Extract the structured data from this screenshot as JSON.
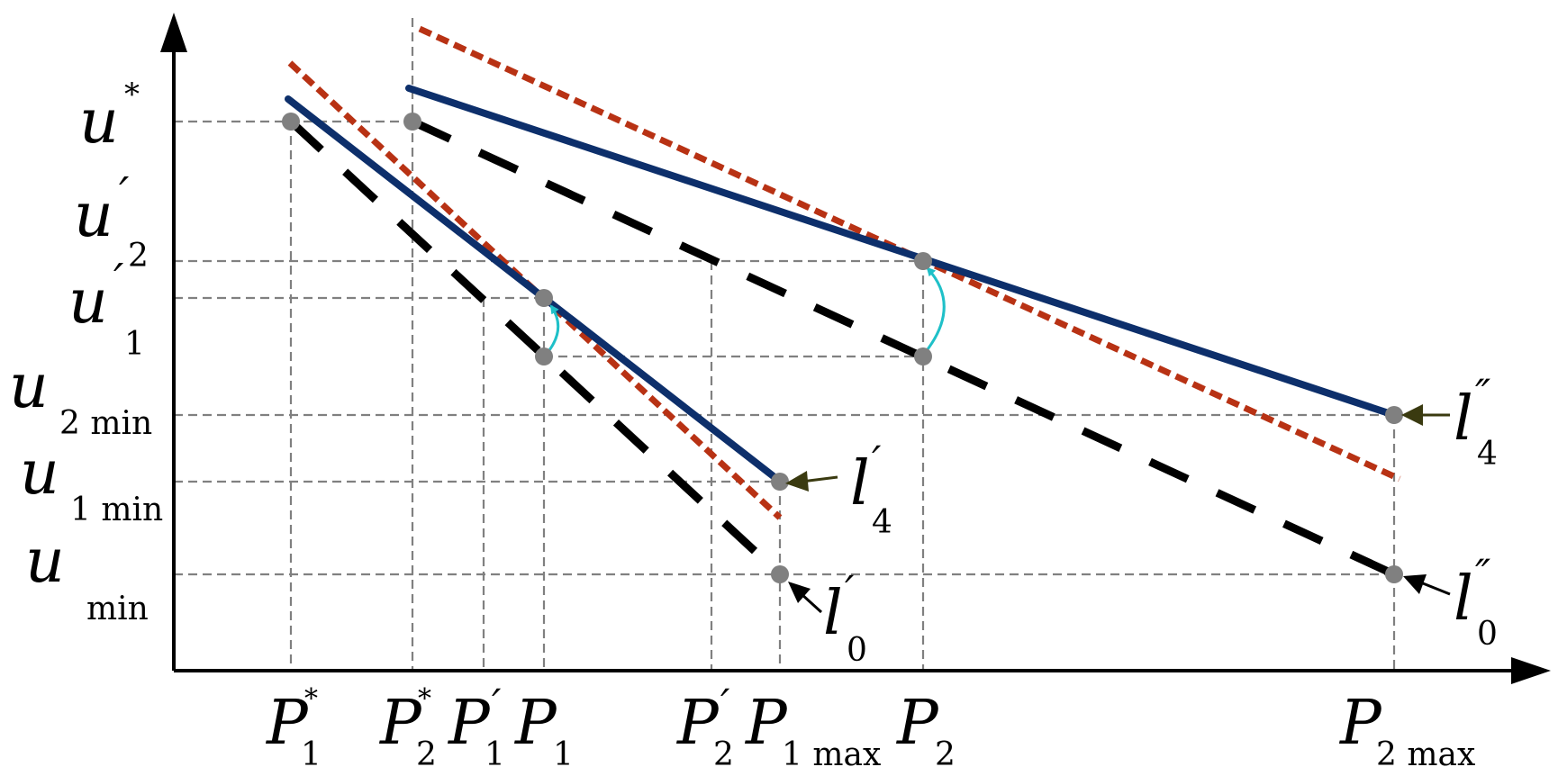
{
  "colors": {
    "blue_line": "#0d2f6b",
    "red_dotted": "#b83214",
    "black_dashed": "#000000",
    "grid": "#808080",
    "point": "#808080",
    "cyan_arrow": "#1fc0c8",
    "label_arrow_olive": "#3a3a10",
    "label_arrow_black": "#000000"
  },
  "y_labels": {
    "u_star": {
      "main": "u",
      "sup": "*",
      "sub": ""
    },
    "u2_prime": {
      "main": "u",
      "sup": "′",
      "sub": "2"
    },
    "u1_prime": {
      "main": "u",
      "sup": "′",
      "sub": "1"
    },
    "u2_min": {
      "main": "u",
      "sup": "",
      "sub": "2 min"
    },
    "u1_min": {
      "main": "u",
      "sup": "",
      "sub": "1 min"
    },
    "u_min": {
      "main": "u",
      "sup": "",
      "sub": "min"
    }
  },
  "x_labels": {
    "p1_star": {
      "main": "P",
      "sup": "*",
      "sub": "1"
    },
    "p2_star": {
      "main": "P",
      "sup": "*",
      "sub": "2"
    },
    "p1_prime": {
      "main": "P",
      "sup": "′",
      "sub": "1"
    },
    "p1": {
      "main": "P",
      "sup": "",
      "sub": "1"
    },
    "p2_prime": {
      "main": "P",
      "sup": "′",
      "sub": "2"
    },
    "p1_max": {
      "main": "P",
      "sup": "",
      "sub": "1 max"
    },
    "p2": {
      "main": "P",
      "sup": "",
      "sub": "2"
    },
    "p2_max": {
      "main": "P",
      "sup": "",
      "sub": "2 max"
    }
  },
  "line_labels": {
    "l4_prime": {
      "main": "l",
      "sup": "′",
      "sub": "4"
    },
    "l0_prime": {
      "main": "l",
      "sup": "′",
      "sub": "0"
    },
    "l4_dprime": {
      "main": "l",
      "sup": "″",
      "sub": "4"
    },
    "l0_dprime": {
      "main": "l",
      "sup": "″",
      "sub": "0"
    }
  }
}
